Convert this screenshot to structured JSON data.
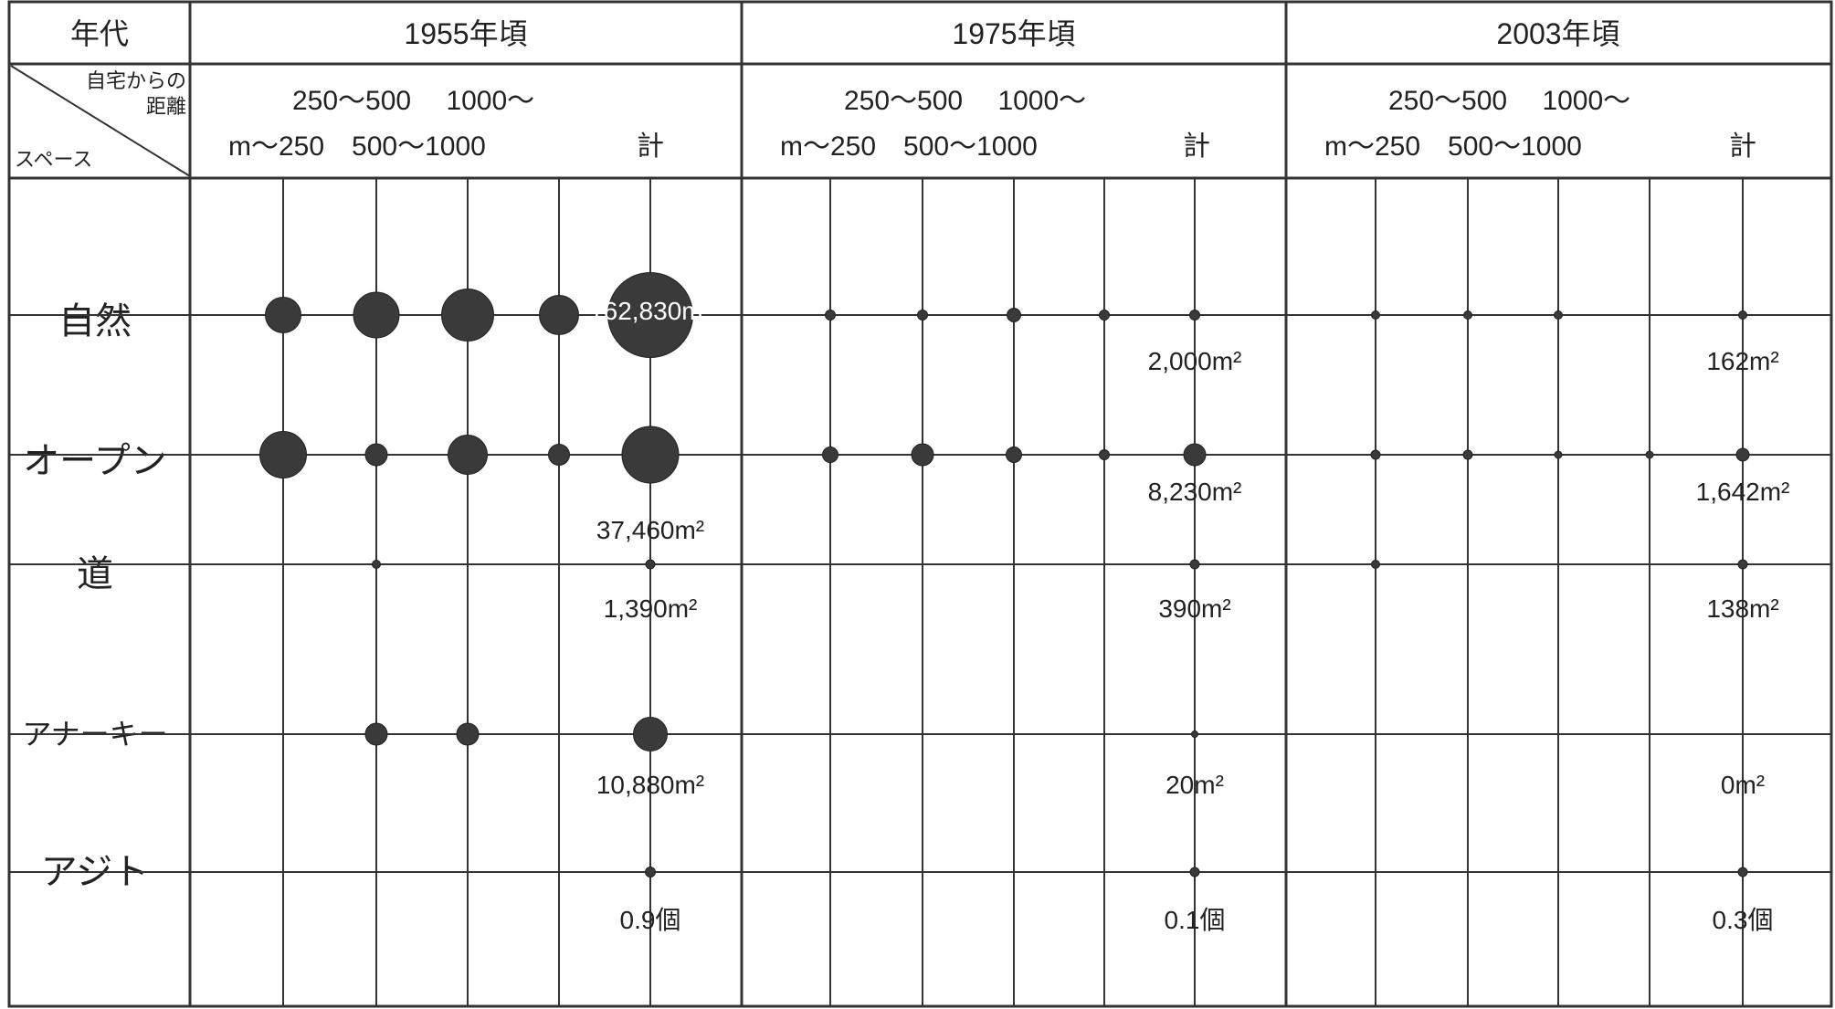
{
  "header": {
    "era_label": "年代",
    "corner_top": "自宅からの",
    "corner_mid": "距離",
    "corner_bottom": "スペース"
  },
  "eras": [
    {
      "label": "1955年頃",
      "sub_top": "250〜500　 1000〜",
      "sub_bottom": "m〜250　500〜1000",
      "total": "計"
    },
    {
      "label": "1975年頃",
      "sub_top": "250〜500　 1000〜",
      "sub_bottom": "m〜250　500〜1000",
      "total": "計"
    },
    {
      "label": "2003年頃",
      "sub_top": "250〜500　 1000〜",
      "sub_bottom": "m〜250　500〜1000",
      "total": "計"
    }
  ],
  "rows": [
    {
      "label": "自然"
    },
    {
      "label": "オープン"
    },
    {
      "label": "道"
    },
    {
      "label": "アナーキー"
    },
    {
      "label": "アジト"
    }
  ],
  "chart_data": {
    "type": "bubble-grid",
    "eras": [
      "1955年頃",
      "1975年頃",
      "2003年頃"
    ],
    "distance_bands": [
      "m〜250",
      "250〜500",
      "500〜1000",
      "1000〜",
      "計"
    ],
    "spaces": [
      "自然",
      "オープン",
      "道",
      "アナーキー",
      "アジト"
    ],
    "bubble_sizes_relative": [
      [
        [
          39,
          50,
          57,
          43,
          93
        ],
        [
          11,
          11,
          15,
          11,
          11
        ],
        [
          9,
          9,
          9,
          0,
          9
        ]
      ],
      [
        [
          51,
          24,
          43,
          23,
          62
        ],
        [
          17,
          24,
          17,
          11,
          24
        ],
        [
          10,
          10,
          8,
          8,
          14
        ]
      ],
      [
        [
          0,
          9,
          0,
          0,
          10
        ],
        [
          0,
          0,
          0,
          0,
          10
        ],
        [
          9,
          0,
          0,
          0,
          10
        ]
      ],
      [
        [
          0,
          24,
          24,
          0,
          37
        ],
        [
          0,
          0,
          0,
          0,
          7
        ],
        [
          0,
          0,
          0,
          0,
          0
        ]
      ],
      [
        [
          0,
          0,
          0,
          0,
          11
        ],
        [
          0,
          0,
          0,
          0,
          10
        ],
        [
          0,
          0,
          0,
          0,
          10
        ]
      ]
    ],
    "totals": [
      [
        "162,830m²",
        "2,000m²",
        "162m²"
      ],
      [
        "37,460m²",
        "8,230m²",
        "1,642m²"
      ],
      [
        "1,390m²",
        "390m²",
        "138m²"
      ],
      [
        "10,880m²",
        "20m²",
        "0m²"
      ],
      [
        "0.9個",
        "0.1個",
        "0.3個"
      ]
    ]
  }
}
